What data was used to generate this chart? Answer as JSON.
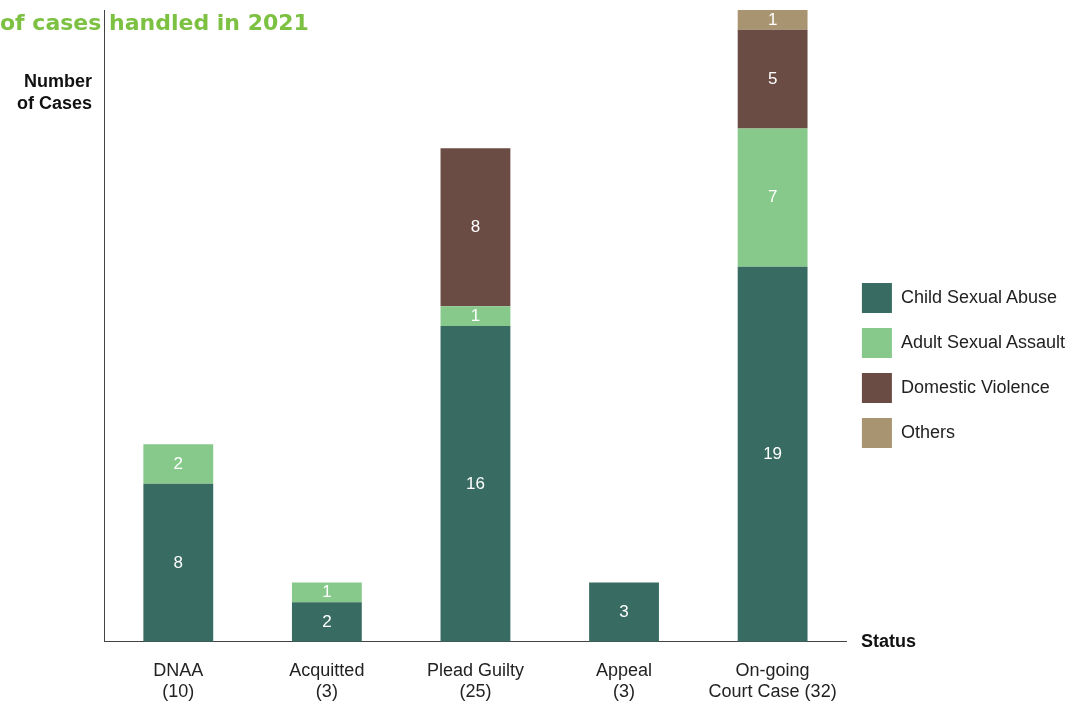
{
  "chart_data": {
    "type": "bar",
    "stacked": true,
    "title": "of cases handled in 2021",
    "xlabel": "Status",
    "ylabel": "Number\nof Cases",
    "categories": [
      "DNAA\n(10)",
      "Acquitted\n(3)",
      "Plead Guilty\n(25)",
      "Appeal\n(3)",
      "On-going\nCourt Case (32)"
    ],
    "series": [
      {
        "name": "Child Sexual Abuse",
        "color": "#386b61",
        "values": [
          8,
          2,
          16,
          3,
          19
        ]
      },
      {
        "name": "Adult Sexual Assault",
        "color": "#86c98b",
        "values": [
          2,
          1,
          1,
          null,
          7
        ]
      },
      {
        "name": "Domestic Violence",
        "color": "#6b4c44",
        "values": [
          null,
          null,
          8,
          null,
          5
        ]
      },
      {
        "name": "Others",
        "color": "#a89470",
        "values": [
          null,
          null,
          null,
          null,
          1
        ]
      }
    ],
    "data_labels": true,
    "legend": "right",
    "grid": false
  }
}
